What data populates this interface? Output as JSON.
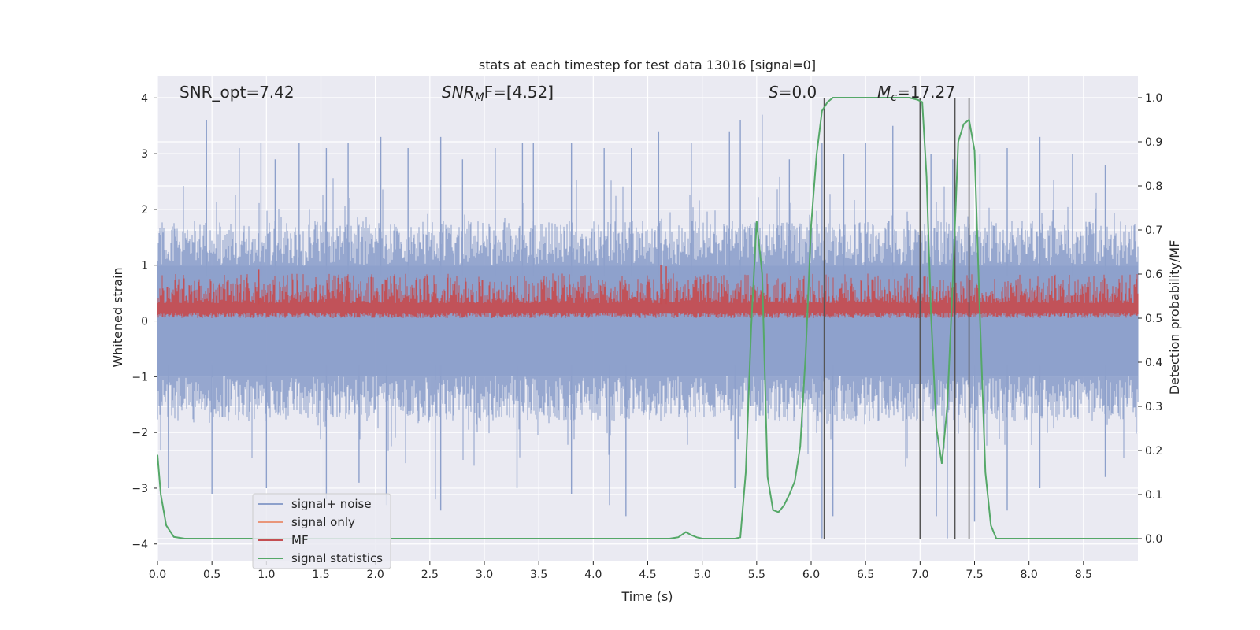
{
  "chart_data": {
    "type": "line",
    "title": "stats at each timestep for test data 13016 [signal=0]",
    "xlabel": "Time (s)",
    "ylabel_left": "Whitened strain",
    "ylabel_right": "Detection probability/MF",
    "xlim": [
      0,
      9
    ],
    "ylim_left": [
      -4.3,
      4.4
    ],
    "ylim_right": [
      -0.05,
      1.05
    ],
    "x_ticks": [
      "0.0",
      "0.5",
      "1.0",
      "1.5",
      "2.0",
      "2.5",
      "3.0",
      "3.5",
      "4.0",
      "4.5",
      "5.0",
      "5.5",
      "6.0",
      "6.5",
      "7.0",
      "7.5",
      "8.0",
      "8.5"
    ],
    "y_ticks_left": [
      "4",
      "3",
      "2",
      "1",
      "0",
      "−1",
      "−2",
      "−3",
      "−4"
    ],
    "y_ticks_right": [
      "1.0",
      "0.9",
      "0.8",
      "0.7",
      "0.6",
      "0.5",
      "0.4",
      "0.3",
      "0.2",
      "0.1",
      "0.0"
    ],
    "grid": true,
    "annotations": {
      "snr_opt": "SNR_opt=7.42",
      "snr_mf_sym": "SNR",
      "snr_mf_sub": "M",
      "snr_mf_rest": "F=[4.52]",
      "s_sym": "S",
      "s_rest": "=0.0",
      "mc_sym": "M",
      "mc_sub": "c",
      "mc_rest": "=17.27"
    },
    "legend": {
      "placement": "lower-left",
      "entries": [
        "signal+ noise",
        "signal only",
        "MF",
        "signal statistics"
      ]
    },
    "colors": {
      "noise": "#8da0cb",
      "signal": "#e9967a",
      "mf": "#c44e52",
      "stats": "#55a868",
      "vline": "#555555",
      "plot_bg": "#eaeaf2",
      "grid": "#ffffff"
    },
    "vertical_lines_x": [
      6.12,
      7.0,
      7.32,
      7.45
    ],
    "series": [
      {
        "name": "signal statistics",
        "axis": "right",
        "x": [
          0.0,
          0.03,
          0.08,
          0.15,
          0.25,
          0.5,
          1.0,
          2.0,
          3.0,
          4.0,
          4.5,
          4.7,
          4.78,
          4.85,
          4.9,
          4.95,
          5.0,
          5.2,
          5.3,
          5.35,
          5.4,
          5.45,
          5.5,
          5.55,
          5.6,
          5.65,
          5.7,
          5.75,
          5.8,
          5.85,
          5.9,
          5.95,
          6.0,
          6.05,
          6.1,
          6.15,
          6.2,
          6.25,
          6.3,
          6.4,
          6.5,
          6.6,
          6.7,
          6.8,
          6.9,
          6.98,
          7.02,
          7.06,
          7.1,
          7.15,
          7.2,
          7.25,
          7.3,
          7.35,
          7.4,
          7.45,
          7.5,
          7.55,
          7.6,
          7.65,
          7.7,
          7.75,
          7.8,
          8.0,
          8.5,
          9.0
        ],
        "values": [
          0.19,
          0.1,
          0.03,
          0.004,
          0.0,
          0.0,
          0.0,
          0.0,
          0.0,
          0.0,
          0.0,
          0.0,
          0.003,
          0.015,
          0.008,
          0.003,
          0.0,
          0.0,
          0.0,
          0.003,
          0.15,
          0.48,
          0.72,
          0.6,
          0.14,
          0.065,
          0.06,
          0.075,
          0.1,
          0.13,
          0.21,
          0.42,
          0.71,
          0.87,
          0.97,
          0.99,
          1.0,
          1.0,
          1.0,
          1.0,
          1.0,
          1.0,
          1.0,
          1.0,
          1.0,
          0.995,
          0.99,
          0.82,
          0.51,
          0.25,
          0.17,
          0.3,
          0.58,
          0.9,
          0.94,
          0.95,
          0.88,
          0.5,
          0.15,
          0.03,
          0.0,
          0.0,
          0.0,
          0.0,
          0.0,
          0.0
        ]
      },
      {
        "name": "signal+ noise",
        "axis": "left",
        "range": [
          -1.8,
          1.8
        ],
        "peak_times": [
          0.45,
          0.75,
          0.95,
          1.08,
          1.3,
          1.55,
          1.75,
          2.05,
          2.3,
          2.6,
          2.8,
          3.1,
          3.35,
          3.45,
          3.8,
          4.1,
          4.35,
          4.6,
          4.9,
          5.25,
          5.35,
          5.55,
          5.8,
          6.1,
          6.3,
          6.5,
          6.75,
          7.1,
          7.3,
          7.55,
          7.8,
          8.1,
          8.4,
          8.7
        ],
        "peak_values": [
          3.6,
          3.1,
          3.2,
          2.9,
          3.2,
          3.1,
          3.2,
          3.3,
          3.1,
          3.3,
          2.9,
          3.1,
          3.2,
          3.2,
          3.2,
          3.1,
          3.1,
          3.4,
          3.2,
          3.4,
          3.6,
          3.7,
          2.9,
          3.2,
          3.0,
          3.2,
          3.5,
          3.0,
          2.9,
          3.0,
          3.1,
          3.3,
          3.0,
          2.8
        ],
        "trough_times": [
          0.1,
          0.5,
          1.0,
          1.55,
          1.85,
          2.1,
          2.55,
          2.6,
          3.3,
          3.8,
          4.15,
          4.3,
          5.3,
          6.1,
          6.2,
          7.15,
          7.25,
          7.5,
          7.8,
          8.1,
          8.7
        ],
        "trough_values": [
          -3.0,
          -3.1,
          -3.0,
          -3.2,
          -2.9,
          -3.3,
          -3.2,
          -3.4,
          -3.0,
          -3.1,
          -3.3,
          -3.5,
          -3.0,
          -3.9,
          -3.5,
          -3.5,
          -3.9,
          -3.6,
          -3.4,
          -3.0,
          -2.8
        ]
      },
      {
        "name": "MF",
        "axis": "left",
        "range": [
          0.05,
          0.85
        ],
        "peak_times": [
          0.93,
          4.62,
          4.67
        ],
        "peak_values": [
          0.92,
          1.0,
          0.98
        ]
      },
      {
        "name": "signal only",
        "axis": "left",
        "values": []
      }
    ]
  }
}
